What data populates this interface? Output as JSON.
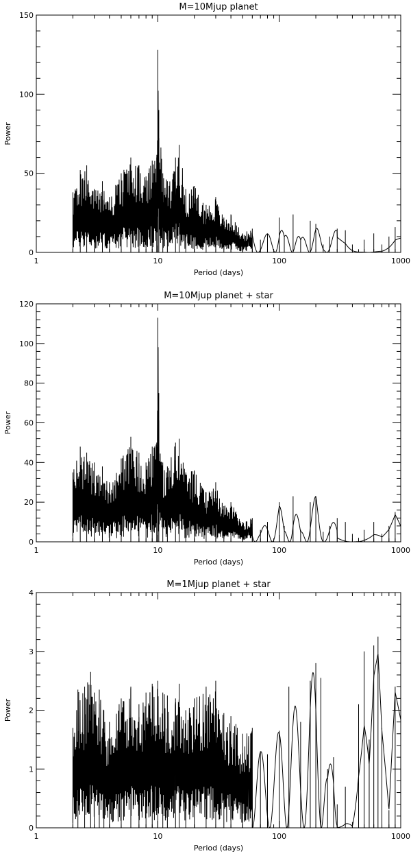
{
  "chart_data": [
    {
      "type": "line",
      "title": "M=10Mjup planet",
      "xlabel": "Period (days)",
      "ylabel": "Power",
      "xscale": "log",
      "xlim": [
        1,
        1000
      ],
      "ylim": [
        0,
        150
      ],
      "x_ticks": [
        1,
        10,
        100,
        1000
      ],
      "x_tick_labels": [
        "1",
        "10",
        "100",
        "1000"
      ],
      "y_ticks": [
        0,
        50,
        100,
        150
      ],
      "y_tick_labels": [
        "0",
        "50",
        "100",
        "150"
      ],
      "color": "#000000",
      "series": [
        {
          "x": [
            2.0,
            2.3,
            2.6,
            3.0,
            3.5,
            4.0,
            5.0,
            6.0,
            7.0,
            8.0,
            9.0,
            9.8,
            10.0,
            10.2,
            11.0,
            12.0,
            14.0,
            15.0,
            17.0,
            20.0,
            25.0,
            30.0,
            35.0,
            40.0,
            50.0,
            60.0,
            70.0,
            80.0,
            100.0,
            110.0,
            130.0,
            150.0,
            180.0,
            200.0,
            230.0,
            260.0,
            300.0,
            350.0,
            400.0,
            450.0,
            500.0,
            600.0,
            700.0,
            800.0,
            900.0,
            1000.0
          ],
          "y": [
            38,
            52,
            55,
            40,
            45,
            35,
            50,
            60,
            55,
            48,
            58,
            60,
            128,
            90,
            50,
            45,
            60,
            68,
            40,
            42,
            30,
            35,
            22,
            24,
            12,
            15,
            8,
            12,
            22,
            10,
            24,
            8,
            20,
            18,
            5,
            10,
            15,
            14,
            5,
            2,
            8,
            12,
            5,
            10,
            16,
            14
          ]
        }
      ]
    },
    {
      "type": "line",
      "title": "M=10Mjup planet + star",
      "xlabel": "Period (days)",
      "ylabel": "Power",
      "xscale": "log",
      "xlim": [
        1,
        1000
      ],
      "ylim": [
        0,
        120
      ],
      "x_ticks": [
        1,
        10,
        100,
        1000
      ],
      "x_tick_labels": [
        "1",
        "10",
        "100",
        "1000"
      ],
      "y_ticks": [
        0,
        20,
        40,
        60,
        80,
        100,
        120
      ],
      "y_tick_labels": [
        "0",
        "20",
        "40",
        "60",
        "80",
        "100",
        "120"
      ],
      "color": "#000000",
      "series": [
        {
          "x": [
            2.0,
            2.3,
            2.6,
            3.0,
            3.5,
            4.0,
            5.0,
            6.0,
            7.0,
            8.0,
            9.0,
            9.8,
            10.0,
            10.2,
            11.0,
            12.0,
            14.0,
            15.0,
            17.0,
            20.0,
            25.0,
            30.0,
            35.0,
            40.0,
            50.0,
            60.0,
            70.0,
            80.0,
            100.0,
            110.0,
            130.0,
            150.0,
            180.0,
            200.0,
            230.0,
            260.0,
            300.0,
            350.0,
            400.0,
            450.0,
            500.0,
            600.0,
            700.0,
            800.0,
            900.0,
            1000.0
          ],
          "y": [
            35,
            48,
            45,
            40,
            38,
            30,
            42,
            53,
            45,
            40,
            48,
            50,
            113,
            75,
            40,
            38,
            50,
            52,
            35,
            36,
            25,
            30,
            18,
            20,
            10,
            12,
            6,
            10,
            20,
            8,
            23,
            6,
            20,
            23,
            5,
            8,
            12,
            10,
            4,
            2,
            6,
            10,
            4,
            8,
            15,
            8
          ]
        }
      ]
    },
    {
      "type": "line",
      "title": "M=1Mjup planet + star",
      "xlabel": "Period (days)",
      "ylabel": "Power",
      "xscale": "log",
      "xlim": [
        1,
        1000
      ],
      "ylim": [
        0,
        4
      ],
      "x_ticks": [
        1,
        10,
        100,
        1000
      ],
      "x_tick_labels": [
        "1",
        "10",
        "100",
        "1000"
      ],
      "y_ticks": [
        0,
        1,
        2,
        3,
        4
      ],
      "y_tick_labels": [
        "0",
        "1",
        "2",
        "3",
        "4"
      ],
      "color": "#000000",
      "series": [
        {
          "x": [
            2.0,
            2.2,
            2.5,
            2.8,
            3.0,
            3.3,
            3.6,
            4.0,
            5.0,
            6.0,
            7.0,
            8.0,
            9.0,
            10.0,
            11.0,
            12.0,
            14.0,
            15.0,
            17.0,
            20.0,
            25.0,
            30.0,
            35.0,
            40.0,
            50.0,
            60.0,
            70.0,
            80.0,
            100.0,
            120.0,
            150.0,
            180.0,
            200.0,
            220.0,
            250.0,
            280.0,
            300.0,
            350.0,
            400.0,
            450.0,
            500.0,
            550.0,
            600.0,
            650.0,
            700.0,
            800.0,
            900.0,
            1000.0
          ],
          "y": [
            1.7,
            2.35,
            2.4,
            2.65,
            2.3,
            2.35,
            2.0,
            1.8,
            2.2,
            2.4,
            2.1,
            2.3,
            2.45,
            2.5,
            2.3,
            2.25,
            2.2,
            2.45,
            2.0,
            2.2,
            2.4,
            2.5,
            1.95,
            1.9,
            1.6,
            1.7,
            1.3,
            1.25,
            1.65,
            2.4,
            1.8,
            2.5,
            2.8,
            2.55,
            1.0,
            1.2,
            0.4,
            0.7,
            0.1,
            2.1,
            3.0,
            1.5,
            3.1,
            3.25,
            1.7,
            0.3,
            2.4,
            2.1
          ]
        }
      ]
    }
  ]
}
